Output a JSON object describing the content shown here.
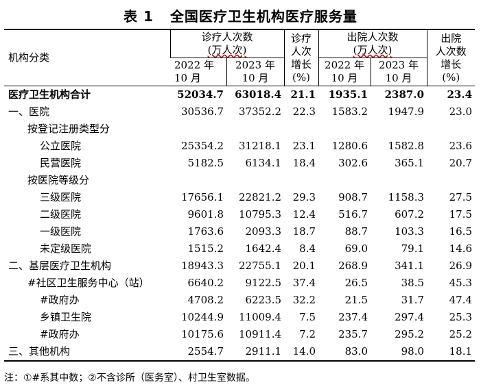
{
  "title": {
    "number": "表 1",
    "text": "全国医疗卫生机构医疗服务量"
  },
  "header": {
    "category": "机构分类",
    "visits_group_line1": "诊疗人次数",
    "visits_group_line2": "(万人次)",
    "visits_growth_l1": "诊疗",
    "visits_growth_l2": "人次",
    "visits_growth_l3": "增长",
    "visits_growth_l4": "(%)",
    "discharge_group_line1": "出院人次数",
    "discharge_group_line2": "(万人次)",
    "discharge_growth_l1": "出院",
    "discharge_growth_l2": "人次数",
    "discharge_growth_l3": "增长",
    "discharge_growth_l4": "(%)",
    "y2022_l1": "2022 年",
    "y2022_l2": "10 月",
    "y2023_l1": "2023 年",
    "y2023_l2": "10 月"
  },
  "rows": [
    {
      "label": "医疗卫生机构合计",
      "v22": "52034.7",
      "v23": "63018.4",
      "vg": "21.1",
      "d22": "1935.1",
      "d23": "2387.0",
      "dg": "23.4"
    },
    {
      "label": "一、医院",
      "v22": "30536.7",
      "v23": "37352.2",
      "vg": "22.3",
      "d22": "1583.2",
      "d23": "1947.9",
      "dg": "23.0"
    },
    {
      "label": "按登记注册类型分",
      "v22": "",
      "v23": "",
      "vg": "",
      "d22": "",
      "d23": "",
      "dg": ""
    },
    {
      "label": "公立医院",
      "v22": "25354.2",
      "v23": "31218.1",
      "vg": "23.1",
      "d22": "1280.6",
      "d23": "1582.8",
      "dg": "23.6"
    },
    {
      "label": "民营医院",
      "v22": "5182.5",
      "v23": "6134.1",
      "vg": "18.4",
      "d22": "302.6",
      "d23": "365.1",
      "dg": "20.7"
    },
    {
      "label": "按医院等级分",
      "v22": "",
      "v23": "",
      "vg": "",
      "d22": "",
      "d23": "",
      "dg": ""
    },
    {
      "label": "三级医院",
      "v22": "17656.1",
      "v23": "22821.2",
      "vg": "29.3",
      "d22": "908.7",
      "d23": "1158.3",
      "dg": "27.5"
    },
    {
      "label": "二级医院",
      "v22": "9601.8",
      "v23": "10795.3",
      "vg": "12.4",
      "d22": "516.7",
      "d23": "607.2",
      "dg": "17.5"
    },
    {
      "label": "一级医院",
      "v22": "1763.6",
      "v23": "2093.3",
      "vg": "18.7",
      "d22": "88.7",
      "d23": "103.3",
      "dg": "16.5"
    },
    {
      "label": "未定级医院",
      "v22": "1515.2",
      "v23": "1642.4",
      "vg": "8.4",
      "d22": "69.0",
      "d23": "79.1",
      "dg": "14.6"
    },
    {
      "label": "二、基层医疗卫生机构",
      "v22": "18943.3",
      "v23": "22755.1",
      "vg": "20.1",
      "d22": "268.9",
      "d23": "341.1",
      "dg": "26.9"
    },
    {
      "label": "#社区卫生服务中心（站）",
      "v22": "6640.2",
      "v23": "9122.5",
      "vg": "37.4",
      "d22": "26.5",
      "d23": "38.5",
      "dg": "45.3"
    },
    {
      "label": "#政府办",
      "v22": "4708.2",
      "v23": "6223.5",
      "vg": "32.2",
      "d22": "21.5",
      "d23": "31.7",
      "dg": "47.4"
    },
    {
      "label": "乡镇卫生院",
      "v22": "10244.9",
      "v23": "11009.4",
      "vg": "7.5",
      "d22": "237.4",
      "d23": "297.4",
      "dg": "25.3"
    },
    {
      "label": "#政府办",
      "v22": "10175.6",
      "v23": "10911.4",
      "vg": "7.2",
      "d22": "235.7",
      "d23": "295.2",
      "dg": "25.2"
    },
    {
      "label": "三、其他机构",
      "v22": "2554.7",
      "v23": "2911.1",
      "vg": "14.0",
      "d22": "83.0",
      "d23": "98.0",
      "dg": "18.1"
    }
  ],
  "note": "注：①#系其中数；②不含诊所（医务室）、村卫生室数据。"
}
